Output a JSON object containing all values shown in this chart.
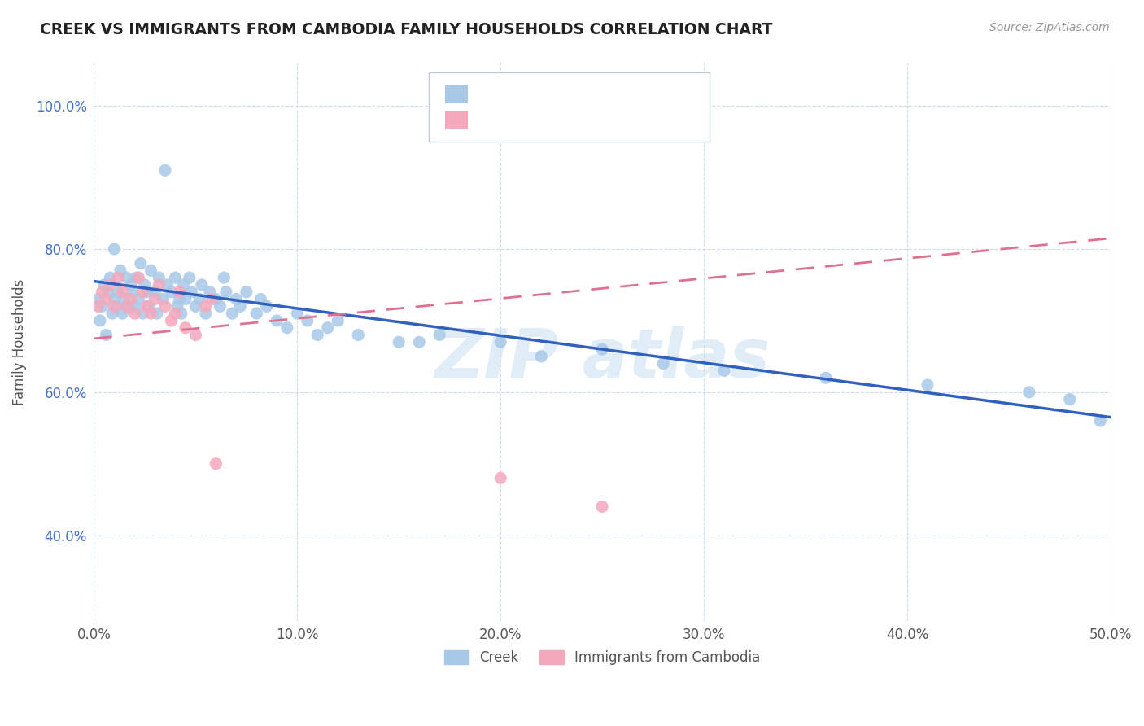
{
  "title": "CREEK VS IMMIGRANTS FROM CAMBODIA FAMILY HOUSEHOLDS CORRELATION CHART",
  "source": "Source: ZipAtlas.com",
  "ylabel_label": "Family Households",
  "xlim": [
    0.0,
    0.5
  ],
  "ylim": [
    0.28,
    1.06
  ],
  "xtick_labels": [
    "0.0%",
    "10.0%",
    "20.0%",
    "30.0%",
    "40.0%",
    "50.0%"
  ],
  "xtick_vals": [
    0.0,
    0.1,
    0.2,
    0.3,
    0.4,
    0.5
  ],
  "ytick_labels": [
    "40.0%",
    "60.0%",
    "80.0%",
    "100.0%"
  ],
  "ytick_vals": [
    0.4,
    0.6,
    0.8,
    1.0
  ],
  "creek_color": "#a8c8e8",
  "cambodia_color": "#f4a8bc",
  "creek_line_color": "#3060c0",
  "cambodia_line_color": "#e07090",
  "watermark_color": "#c8ddf0",
  "title_color": "#333333",
  "creek_line_x0": 0.0,
  "creek_line_y0": 0.755,
  "creek_line_x1": 0.5,
  "creek_line_y1": 0.565,
  "cambodia_line_x0": 0.0,
  "cambodia_line_y0": 0.675,
  "cambodia_line_x1": 0.5,
  "cambodia_line_y1": 0.815,
  "creek_points_x": [
    0.002,
    0.003,
    0.004,
    0.005,
    0.006,
    0.007,
    0.008,
    0.009,
    0.01,
    0.01,
    0.011,
    0.012,
    0.013,
    0.014,
    0.015,
    0.016,
    0.017,
    0.018,
    0.019,
    0.02,
    0.021,
    0.022,
    0.023,
    0.024,
    0.025,
    0.026,
    0.027,
    0.028,
    0.03,
    0.031,
    0.032,
    0.034,
    0.035,
    0.036,
    0.038,
    0.04,
    0.041,
    0.042,
    0.043,
    0.044,
    0.045,
    0.047,
    0.048,
    0.05,
    0.052,
    0.053,
    0.055,
    0.057,
    0.06,
    0.062,
    0.064,
    0.065,
    0.068,
    0.07,
    0.072,
    0.075,
    0.08,
    0.082,
    0.085,
    0.09,
    0.095,
    0.1,
    0.105,
    0.11,
    0.115,
    0.12,
    0.13,
    0.15,
    0.16,
    0.17,
    0.2,
    0.22,
    0.25,
    0.28,
    0.31,
    0.36,
    0.41,
    0.46,
    0.48,
    0.495
  ],
  "creek_points_y": [
    0.73,
    0.7,
    0.72,
    0.75,
    0.68,
    0.74,
    0.76,
    0.71,
    0.8,
    0.73,
    0.72,
    0.74,
    0.77,
    0.71,
    0.73,
    0.76,
    0.72,
    0.75,
    0.74,
    0.72,
    0.76,
    0.73,
    0.78,
    0.71,
    0.75,
    0.74,
    0.72,
    0.77,
    0.74,
    0.71,
    0.76,
    0.73,
    0.91,
    0.75,
    0.74,
    0.76,
    0.72,
    0.73,
    0.71,
    0.75,
    0.73,
    0.76,
    0.74,
    0.72,
    0.73,
    0.75,
    0.71,
    0.74,
    0.73,
    0.72,
    0.76,
    0.74,
    0.71,
    0.73,
    0.72,
    0.74,
    0.71,
    0.73,
    0.72,
    0.7,
    0.69,
    0.71,
    0.7,
    0.68,
    0.69,
    0.7,
    0.68,
    0.67,
    0.67,
    0.68,
    0.67,
    0.65,
    0.66,
    0.64,
    0.63,
    0.62,
    0.61,
    0.6,
    0.59,
    0.56
  ],
  "cambodia_points_x": [
    0.002,
    0.004,
    0.006,
    0.008,
    0.01,
    0.012,
    0.014,
    0.016,
    0.018,
    0.02,
    0.022,
    0.024,
    0.026,
    0.028,
    0.03,
    0.032,
    0.035,
    0.038,
    0.04,
    0.042,
    0.045,
    0.05,
    0.055,
    0.058,
    0.06,
    0.2,
    0.25
  ],
  "cambodia_points_y": [
    0.72,
    0.74,
    0.73,
    0.75,
    0.72,
    0.76,
    0.74,
    0.72,
    0.73,
    0.71,
    0.76,
    0.74,
    0.72,
    0.71,
    0.73,
    0.75,
    0.72,
    0.7,
    0.71,
    0.74,
    0.69,
    0.68,
    0.72,
    0.73,
    0.5,
    0.48,
    0.44
  ]
}
